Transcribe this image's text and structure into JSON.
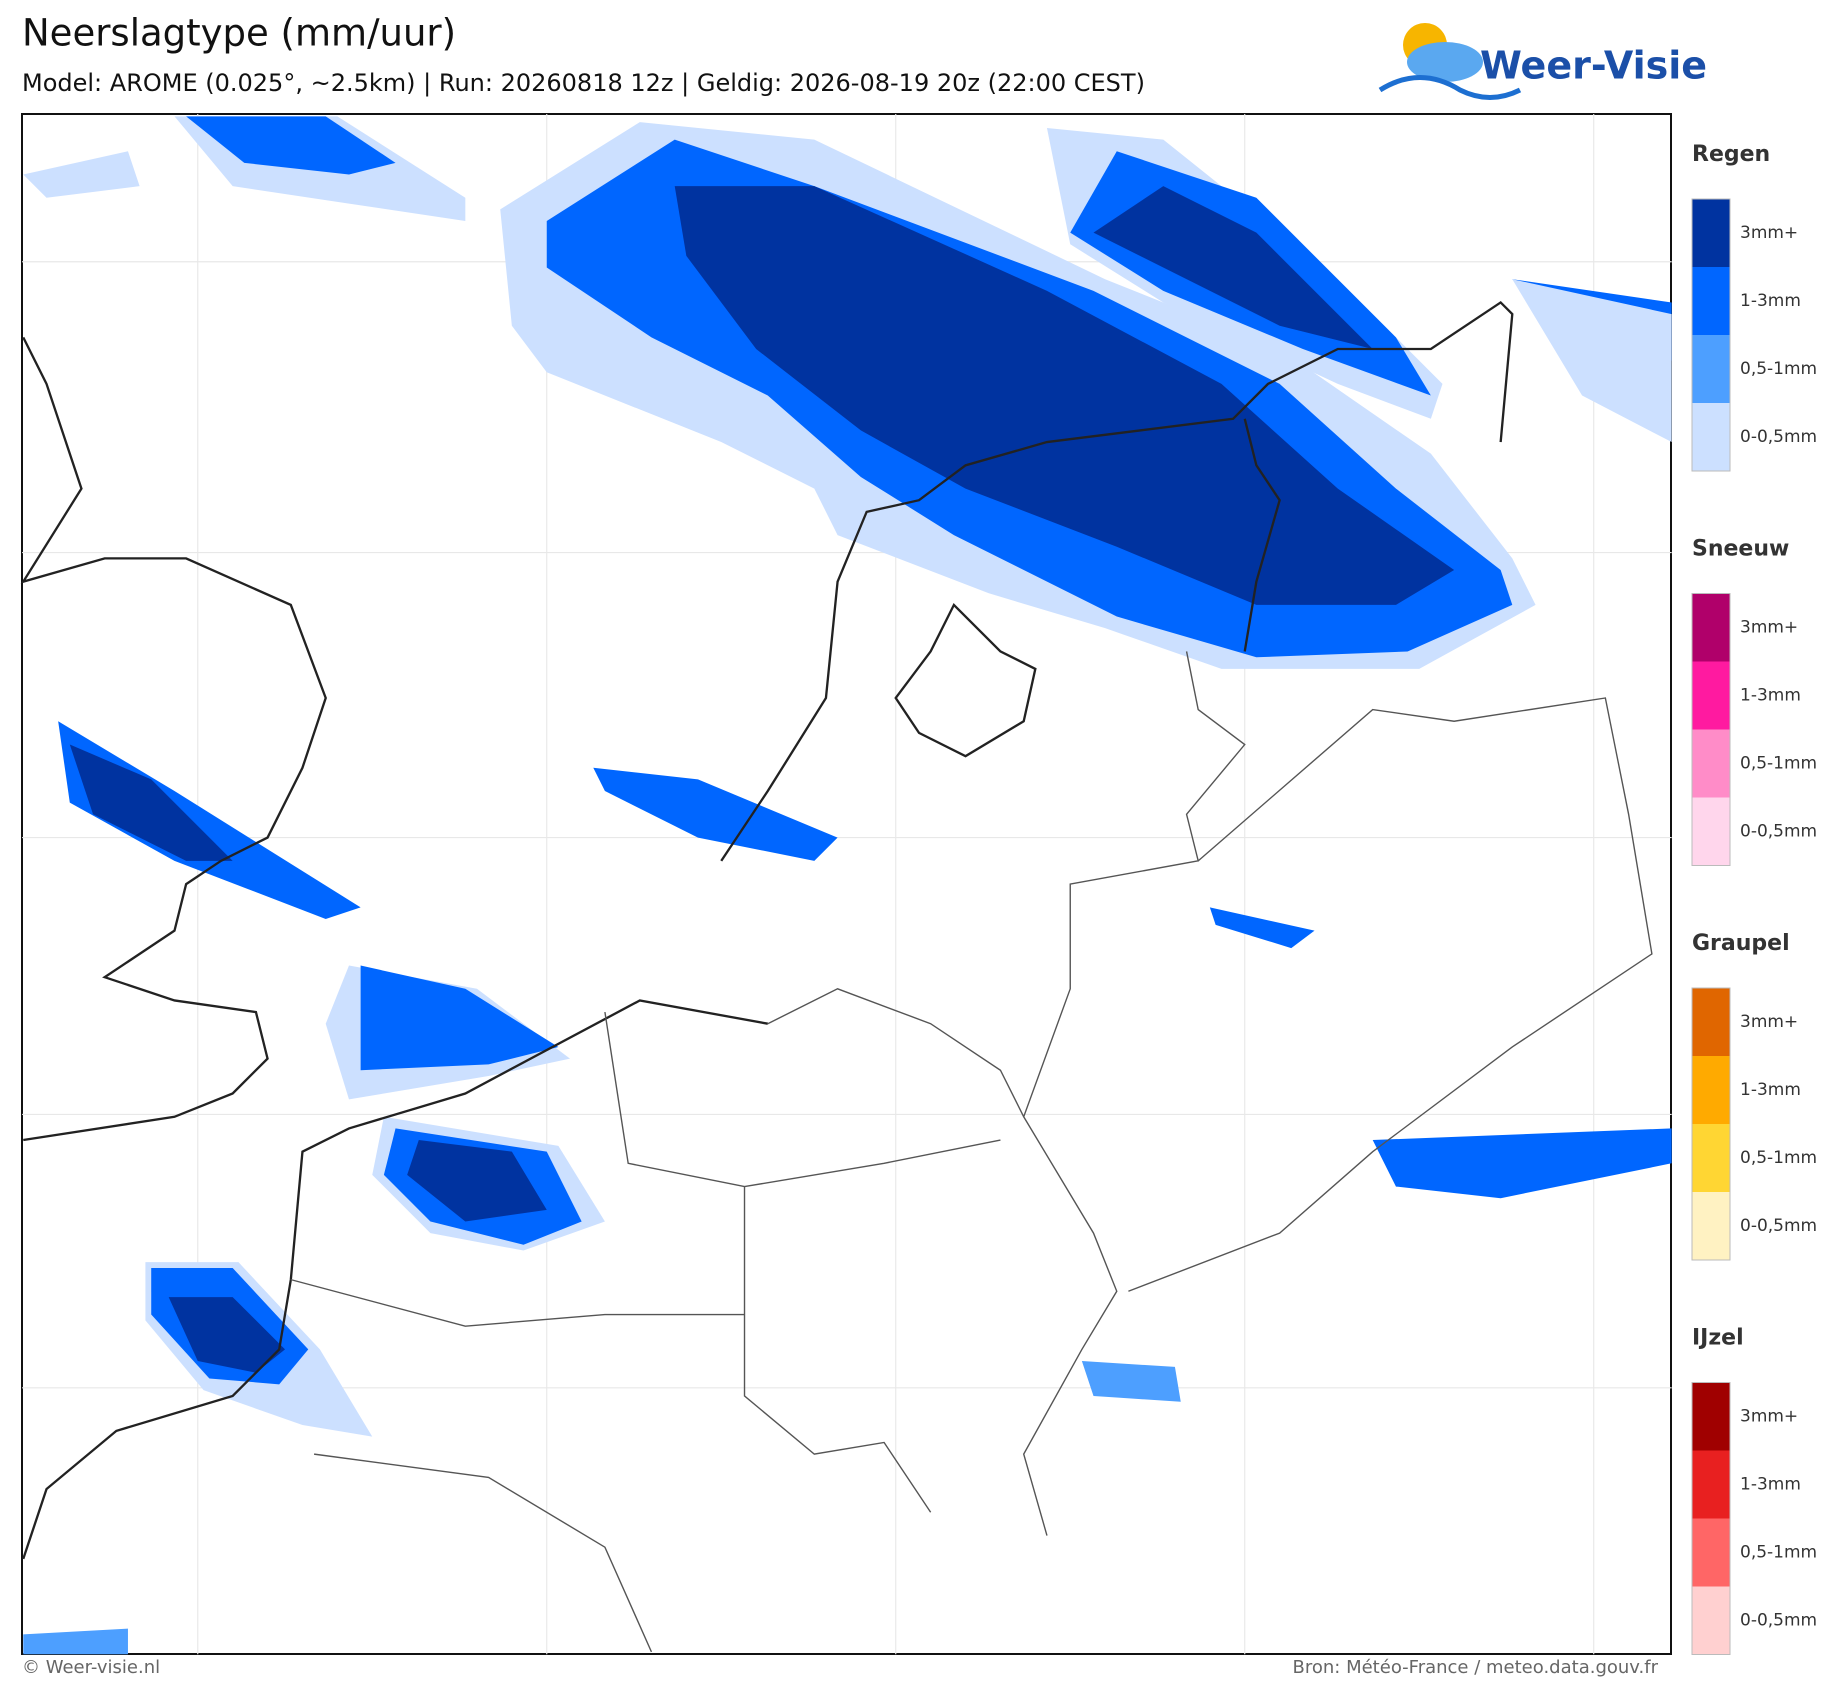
{
  "header": {
    "title": "Neerslagtype (mm/uur)",
    "subtitle": "Model: AROME (0.025°, ~2.5km)  |  Run: 20260818 12z  |  Geldig: 2026-08-19 20z (22:00 CEST)",
    "logo": "Weer-Visie"
  },
  "legend": [
    {
      "title": "Regen",
      "items": [
        {
          "label": "3mm+",
          "color": "#0033a0"
        },
        {
          "label": "1-3mm",
          "color": "#0066ff"
        },
        {
          "label": "0,5-1mm",
          "color": "#4d9fff"
        },
        {
          "label": "0-0,5mm",
          "color": "#cce0ff"
        }
      ]
    },
    {
      "title": "Sneeuw",
      "items": [
        {
          "label": "3mm+",
          "color": "#b0006a"
        },
        {
          "label": "1-3mm",
          "color": "#ff1aa0"
        },
        {
          "label": "0,5-1mm",
          "color": "#ff8cc8"
        },
        {
          "label": "0-0,5mm",
          "color": "#ffd6ec"
        }
      ]
    },
    {
      "title": "Graupel",
      "items": [
        {
          "label": "3mm+",
          "color": "#e06600"
        },
        {
          "label": "1-3mm",
          "color": "#ffaa00"
        },
        {
          "label": "0,5-1mm",
          "color": "#ffd633"
        },
        {
          "label": "0-0,5mm",
          "color": "#fff2c2"
        }
      ]
    },
    {
      "title": "IJzel",
      "items": [
        {
          "label": "3mm+",
          "color": "#a00000"
        },
        {
          "label": "1-3mm",
          "color": "#e82020"
        },
        {
          "label": "0,5-1mm",
          "color": "#ff6666"
        },
        {
          "label": "0-0,5mm",
          "color": "#ffd0d0"
        }
      ]
    }
  ],
  "footer": {
    "left": "© Weer-visie.nl",
    "right": "Bron: Météo-France / meteo.data.gouv.fr"
  }
}
